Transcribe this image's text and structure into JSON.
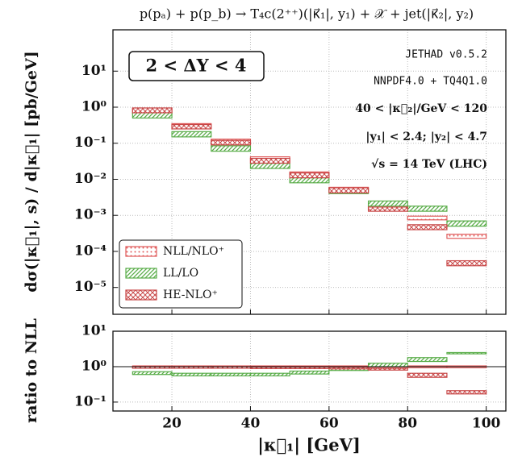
{
  "chart_data": [
    {
      "type": "step",
      "title": "p(pₐ) + p(p_b) → T₄c(2⁺⁺)(|κ⃗₁|, y₁) + 𝒳 + jet(|κ⃗₂|, y₂)",
      "ylabel": "dσ(|κ⃗₁|, s) / d|κ⃗₁|  [pb/GeV]",
      "annotations": [
        "2 < ΔY < 4",
        "JETHAD v0.5.2",
        "NNPDF4.0 + TQ4Q1.0",
        "40 < |κ⃗₂|/GeV < 120",
        "|y₁| < 2.4;   |y₂| < 4.7",
        "√s = 14 TeV (LHC)"
      ],
      "bins": [
        10,
        20,
        30,
        40,
        50,
        60,
        70,
        80,
        90,
        100
      ],
      "xlim": [
        5,
        105
      ],
      "xticks": [
        20,
        40,
        60,
        80,
        100
      ],
      "ylim": [
        1.8e-06,
        140
      ],
      "yscale": "log",
      "yticks": [
        {
          "value": 10,
          "label": "10¹"
        },
        {
          "value": 1,
          "label": "10⁰"
        },
        {
          "value": 0.1,
          "label": "10⁻¹"
        },
        {
          "value": 0.01,
          "label": "10⁻²"
        },
        {
          "value": 0.001,
          "label": "10⁻³"
        },
        {
          "value": 0.0001,
          "label": "10⁻⁴"
        },
        {
          "value": 1e-05,
          "label": "10⁻⁵"
        }
      ],
      "grid": true,
      "legend": "lower left",
      "series": [
        {
          "name": "NLL/NLO⁺",
          "color": "#e05a5a",
          "hatch": "dots",
          "low": [
            0.65,
            0.25,
            0.095,
            0.03,
            0.011,
            0.0045,
            0.0014,
            0.00075,
            0.00023
          ],
          "high": [
            0.95,
            0.35,
            0.13,
            0.042,
            0.016,
            0.006,
            0.0019,
            0.00095,
            0.0003
          ]
        },
        {
          "name": "LL/LO",
          "color": "#5aad4a",
          "hatch": "diagonal",
          "low": [
            0.5,
            0.15,
            0.06,
            0.02,
            0.008,
            0.004,
            0.0018,
            0.0013,
            0.0005
          ],
          "high": [
            0.7,
            0.21,
            0.085,
            0.028,
            0.011,
            0.0055,
            0.0025,
            0.0018,
            0.0007
          ]
        },
        {
          "name": "HE-NLO⁺",
          "color": "#c84848",
          "hatch": "cross",
          "low": [
            0.7,
            0.25,
            0.09,
            0.028,
            0.011,
            0.0042,
            0.0013,
            0.0004,
            4e-05
          ],
          "high": [
            0.95,
            0.33,
            0.12,
            0.038,
            0.015,
            0.0058,
            0.0017,
            0.00055,
            5.5e-05
          ]
        }
      ]
    },
    {
      "type": "step",
      "ylabel": "ratio to NLL",
      "xlabel": "|κ⃗₁|  [GeV]",
      "bins": [
        10,
        20,
        30,
        40,
        50,
        60,
        70,
        80,
        90,
        100
      ],
      "xlim": [
        5,
        105
      ],
      "xticks": [
        20,
        40,
        60,
        80,
        100
      ],
      "ylim": [
        0.056,
        10
      ],
      "yscale": "log",
      "yticks": [
        {
          "value": 10,
          "label": "10¹"
        },
        {
          "value": 1,
          "label": "10⁰"
        },
        {
          "value": 0.1,
          "label": "10⁻¹"
        }
      ],
      "grid": true,
      "reference_line": 1,
      "series": [
        {
          "name": "NLL/NLO⁺",
          "color": "#e05a5a",
          "hatch": "dots",
          "low": [
            0.93,
            0.93,
            0.93,
            0.93,
            0.93,
            0.93,
            0.93,
            0.93,
            0.93
          ],
          "high": [
            1.05,
            1.05,
            1.05,
            1.05,
            1.05,
            1.05,
            1.05,
            1.05,
            1.05
          ]
        },
        {
          "name": "LL/LO",
          "color": "#5aad4a",
          "hatch": "diagonal",
          "low": [
            0.6,
            0.55,
            0.55,
            0.55,
            0.62,
            0.78,
            1.0,
            1.4,
            2.3
          ],
          "high": [
            0.72,
            0.65,
            0.65,
            0.65,
            0.75,
            0.9,
            1.25,
            1.8,
            2.5
          ]
        },
        {
          "name": "HE-NLO⁺",
          "color": "#c84848",
          "hatch": "cross",
          "low": [
            0.9,
            0.9,
            0.9,
            0.88,
            0.88,
            0.86,
            0.8,
            0.5,
            0.17
          ],
          "high": [
            1.0,
            1.0,
            1.0,
            0.97,
            0.97,
            0.95,
            0.9,
            0.65,
            0.21
          ]
        }
      ]
    }
  ]
}
